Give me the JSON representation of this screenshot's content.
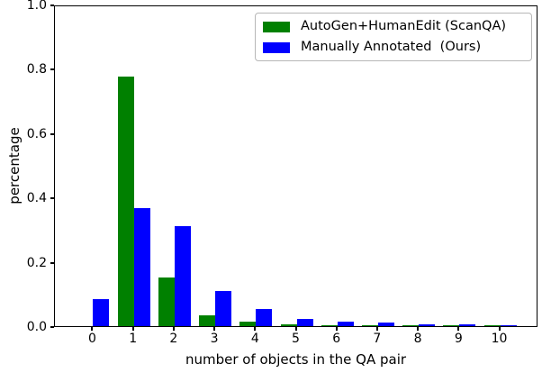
{
  "chart_data": {
    "type": "bar",
    "title": "",
    "xlabel": "number of objects in the QA pair",
    "ylabel": "percentage",
    "categories": [
      "0",
      "1",
      "2",
      "3",
      "4",
      "5",
      "6",
      "7",
      "8",
      "9",
      "10"
    ],
    "series": [
      {
        "name": "AutoGen+HumanEdit (ScanQA)",
        "color": "#008000",
        "values": [
          0.0,
          0.775,
          0.152,
          0.035,
          0.015,
          0.007,
          0.004,
          0.002,
          0.001,
          0.001,
          0.001
        ]
      },
      {
        "name": "Manually Annotated  (Ours)",
        "color": "#0000ff",
        "values": [
          0.084,
          0.367,
          0.31,
          0.11,
          0.053,
          0.022,
          0.014,
          0.01,
          0.007,
          0.005,
          0.003
        ]
      }
    ],
    "ylim": [
      0.0,
      1.0
    ],
    "yticks": [
      0.0,
      0.2,
      0.4,
      0.6,
      0.8,
      1.0
    ],
    "ytick_labels": [
      "0.0",
      "0.2",
      "0.4",
      "0.6",
      "0.8",
      "1.0"
    ],
    "xlim": [
      -0.94,
      10.94
    ],
    "bar_width": 0.4,
    "grid": false,
    "legend_position": "upper right",
    "axis_color": "#000000"
  }
}
